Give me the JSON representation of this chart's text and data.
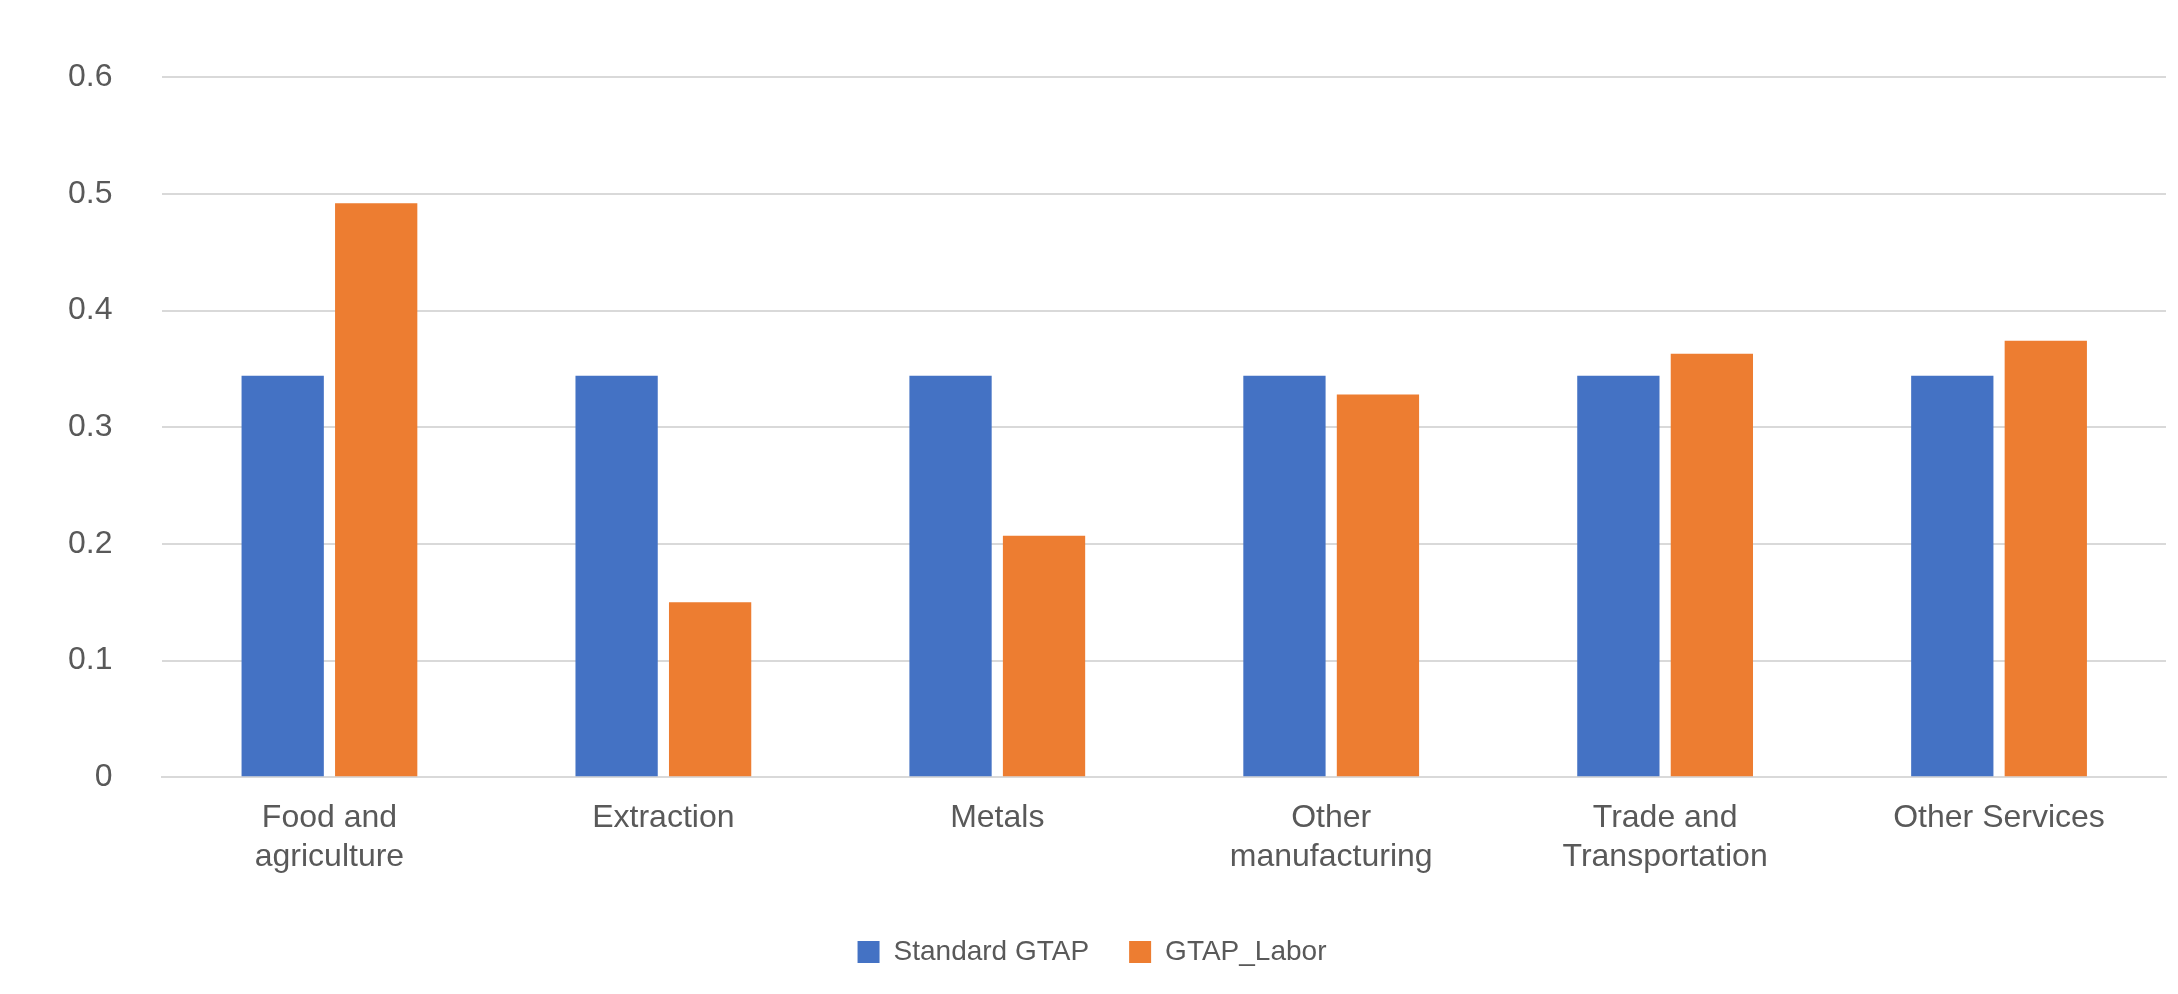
{
  "chart_data": {
    "type": "bar",
    "categories": [
      "Food and agriculture",
      "Extraction",
      "Metals",
      "Other manufacturing",
      "Trade and Transportation",
      "Other Services"
    ],
    "series": [
      {
        "name": "Standard GTAP",
        "color": "#4472c4",
        "values": [
          0.344,
          0.344,
          0.344,
          0.344,
          0.344,
          0.344
        ]
      },
      {
        "name": "GTAP_Labor",
        "color": "#ed7d31",
        "values": [
          0.492,
          0.15,
          0.207,
          0.328,
          0.363,
          0.374
        ]
      }
    ],
    "ylim": [
      0,
      0.6
    ],
    "yticks": [
      0,
      0.1,
      0.2,
      0.3,
      0.4,
      0.5,
      0.6
    ],
    "grid": "y",
    "legend": "bottom"
  }
}
